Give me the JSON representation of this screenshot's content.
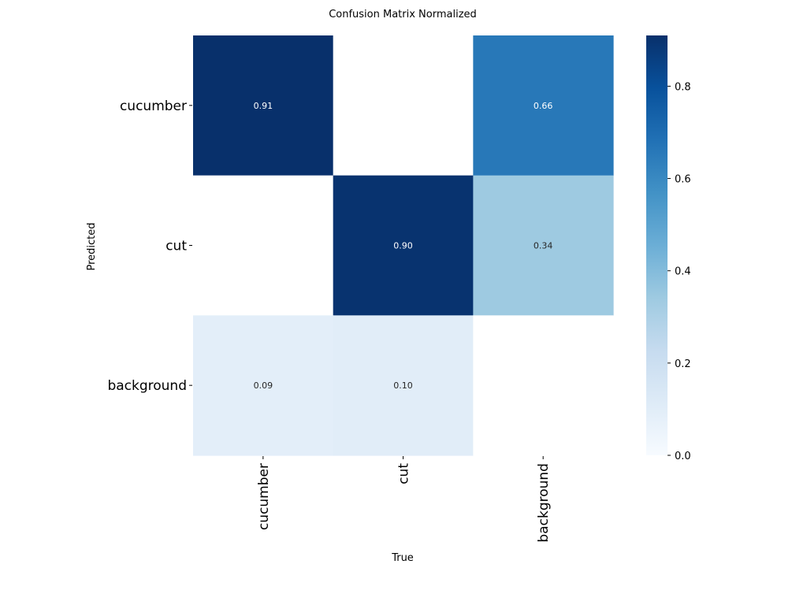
{
  "chart_data": {
    "type": "heatmap",
    "title": "Confusion Matrix Normalized",
    "xlabel": "True",
    "ylabel": "Predicted",
    "x_categories": [
      "cucumber",
      "cut",
      "background"
    ],
    "y_categories": [
      "cucumber",
      "cut",
      "background"
    ],
    "values": [
      [
        0.91,
        null,
        0.66
      ],
      [
        null,
        0.9,
        0.34
      ],
      [
        0.09,
        0.1,
        null
      ]
    ],
    "value_labels": [
      [
        "0.91",
        "",
        "0.66"
      ],
      [
        "",
        "0.90",
        "0.34"
      ],
      [
        "0.09",
        "0.10",
        ""
      ]
    ],
    "colormap": "Blues",
    "vmin": 0.0,
    "vmax": 0.91,
    "colorbar_ticks": [
      0.0,
      0.2,
      0.4,
      0.6,
      0.8
    ],
    "colorbar_tick_labels": [
      "0.0",
      "0.2",
      "0.4",
      "0.6",
      "0.8"
    ],
    "empty_cell_color": "#ffffff",
    "annotation_light_color": "#ffffff",
    "annotation_dark_color": "#262626"
  }
}
